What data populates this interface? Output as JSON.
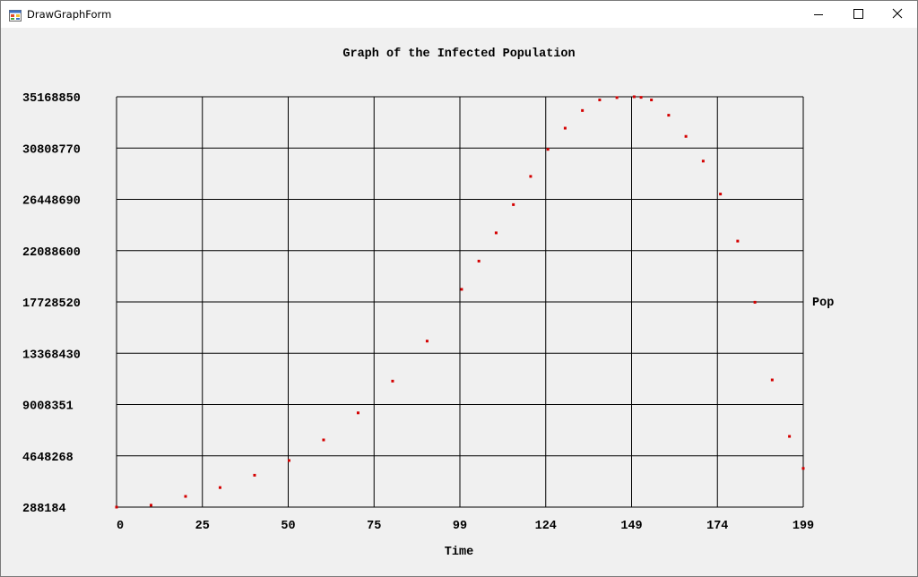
{
  "window": {
    "title": "DrawGraphForm",
    "icon": "winforms-app-icon",
    "controls": [
      "minimize-icon",
      "maximize-icon",
      "close-icon"
    ]
  },
  "chart_data": {
    "type": "scatter",
    "title": "Graph of the Infected Population",
    "xlabel": "Time",
    "ylabel": "Pop",
    "xlim": [
      0,
      199
    ],
    "ylim": [
      288184,
      35168850
    ],
    "x_ticks": [
      "0",
      "25",
      "50",
      "75",
      "99",
      "124",
      "149",
      "174",
      "199"
    ],
    "y_ticks": [
      "288184",
      "4648268",
      "9008351",
      "13368430",
      "17728520",
      "22088600",
      "26448690",
      "30808770",
      "35168850"
    ],
    "grid": true,
    "marker_color": "#d40000",
    "series": [
      {
        "x": [
          0,
          10,
          20,
          30,
          40,
          50,
          60,
          70,
          80,
          90,
          100,
          105,
          110,
          115,
          120,
          125,
          130,
          135,
          140,
          145,
          150,
          152,
          155,
          160,
          165,
          170,
          175,
          180,
          185,
          190,
          195,
          199
        ],
        "y": [
          288184,
          450000,
          1200000,
          1950000,
          3000000,
          4250000,
          6000000,
          8300000,
          11000000,
          14400000,
          18800000,
          21200000,
          23600000,
          26000000,
          28400000,
          30700000,
          32500000,
          34000000,
          34900000,
          35100000,
          35168850,
          35120000,
          34900000,
          33600000,
          31800000,
          29700000,
          26900000,
          22900000,
          17700000,
          11100000,
          6300000,
          3580000
        ]
      }
    ]
  }
}
